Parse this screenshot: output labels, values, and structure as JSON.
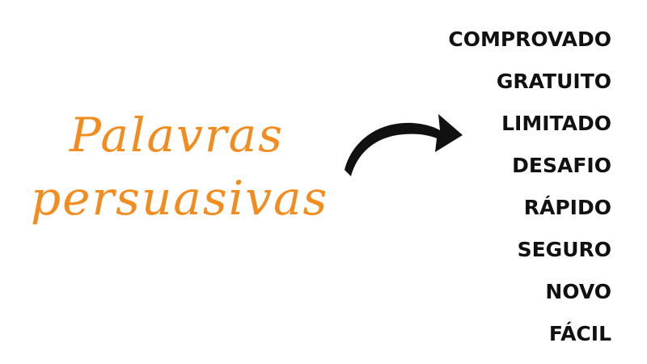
{
  "heading": {
    "line1": "Palavras",
    "line2": "persuasivas"
  },
  "arrow_icon": "curved-arrow-right-icon",
  "colors": {
    "heading": "#f28c1f",
    "words": "#111111",
    "arrow": "#111111",
    "background": "#ffffff"
  },
  "words": [
    "COMPROVADO",
    "GRATUITO",
    "LIMITADO",
    "DESAFIO",
    "RÁPIDO",
    "SEGURO",
    "NOVO",
    "FÁCIL"
  ]
}
